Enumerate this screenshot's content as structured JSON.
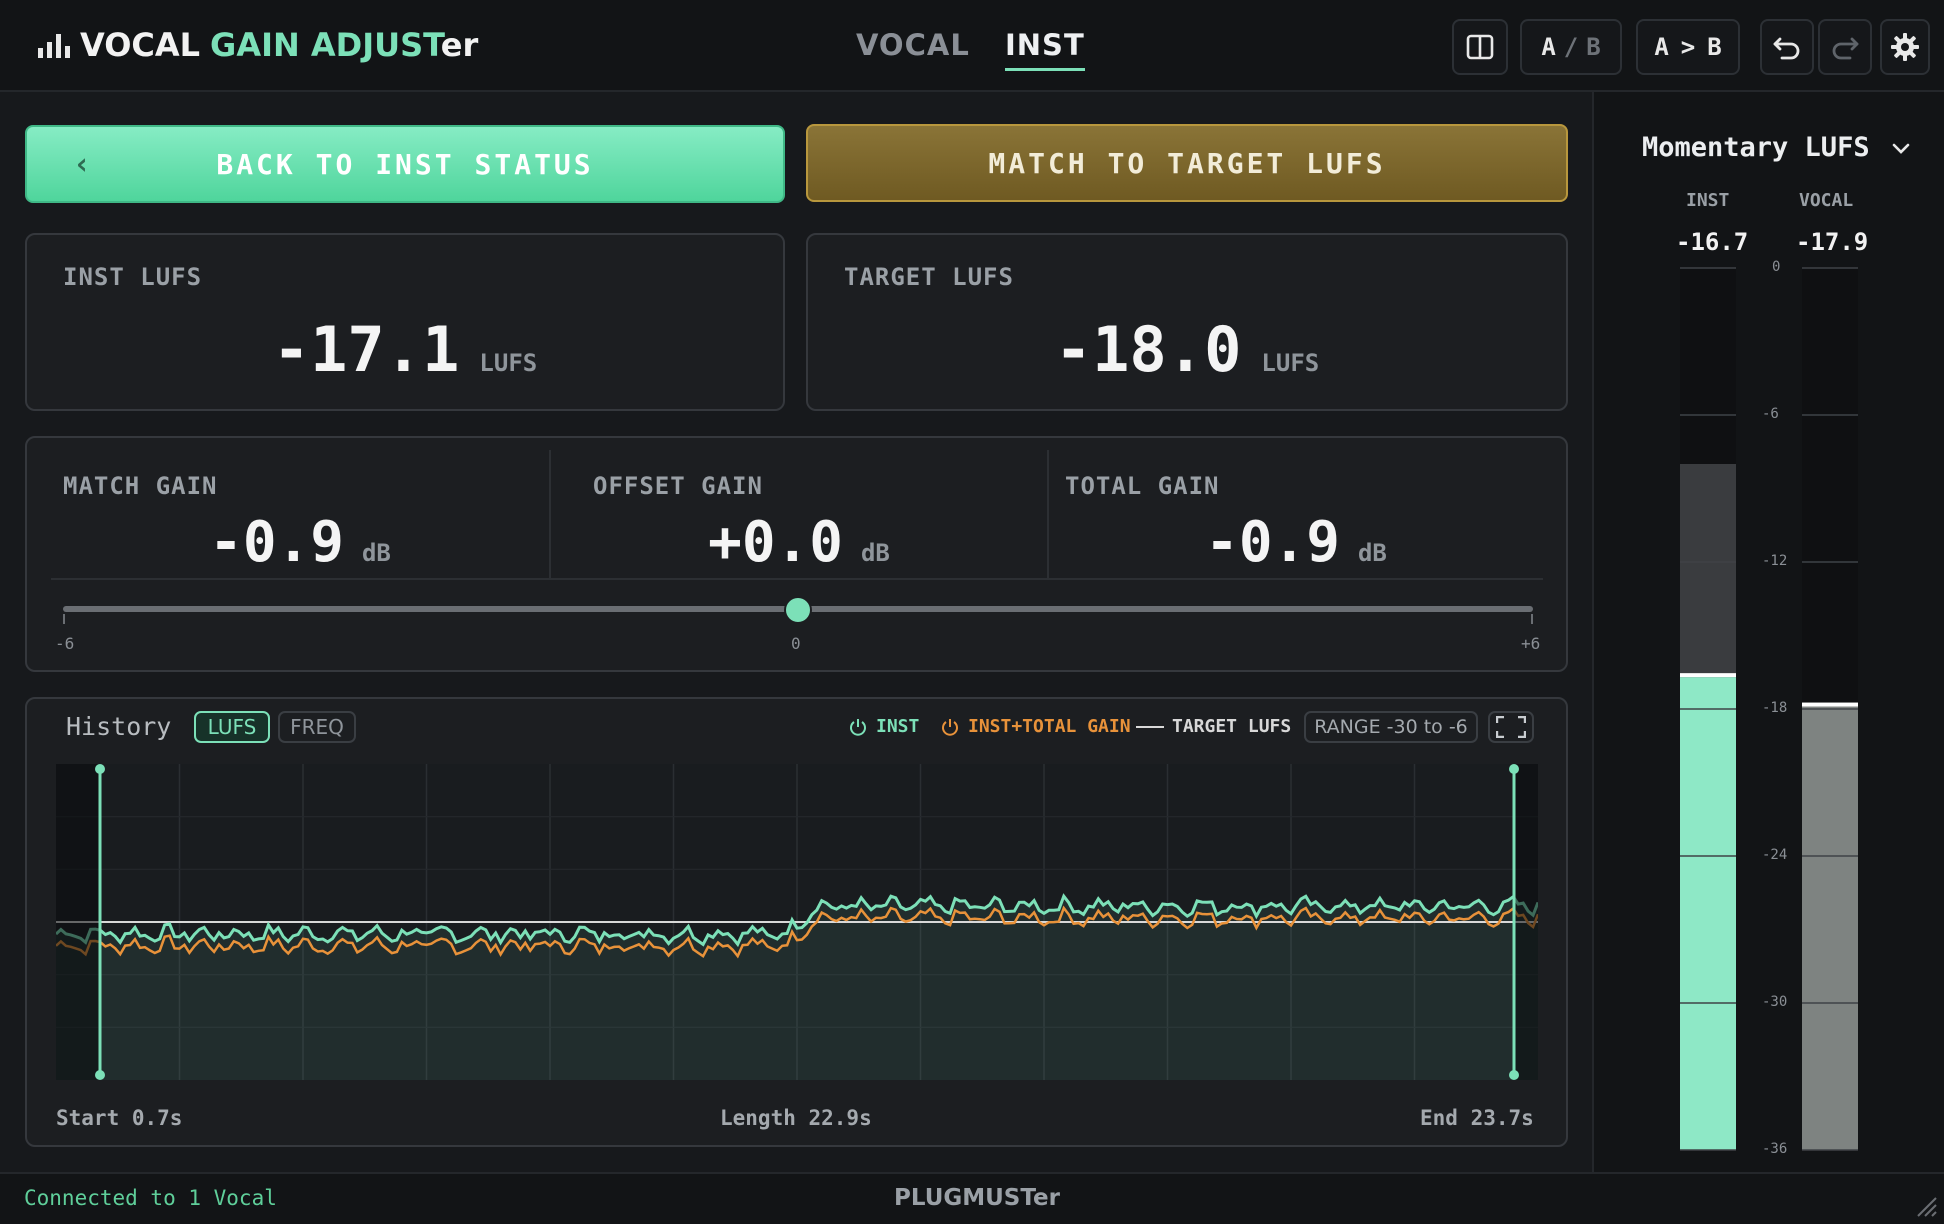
{
  "app": {
    "logo_word1": "VOCAL",
    "logo_word2": "GAIN ADJUST",
    "logo_word3": "er",
    "accent": "#7ce0b8",
    "gold": "#b8973d"
  },
  "nav": {
    "tabs": [
      {
        "label": "VOCAL",
        "active": false
      },
      {
        "label": "INST",
        "active": true
      }
    ]
  },
  "toolbar": {
    "split_view_icon": "split-view-icon",
    "ab_left": "A",
    "ab_sep": "/",
    "ab_right": "B",
    "copy_left": "A",
    "copy_sep": ">",
    "copy_right": "B",
    "undo_icon": "undo-icon",
    "redo_icon": "redo-icon",
    "settings_icon": "gear-icon"
  },
  "actions": {
    "back_chevron": "‹",
    "back_label": "BACK TO INST STATUS",
    "match_label": "MATCH TO TARGET LUFS"
  },
  "inst_lufs": {
    "label": "INST LUFS",
    "value": "-17.1",
    "unit": "LUFS"
  },
  "target_lufs": {
    "label": "TARGET LUFS",
    "value": "-18.0",
    "unit": "LUFS"
  },
  "gains": {
    "match": {
      "label": "MATCH GAIN",
      "value": "-0.9",
      "unit": "dB"
    },
    "offset": {
      "label": "OFFSET GAIN",
      "value": "+0.0",
      "unit": "dB"
    },
    "total": {
      "label": "TOTAL GAIN",
      "value": "-0.9",
      "unit": "dB"
    },
    "slider": {
      "min_label": "-6",
      "mid_label": "0",
      "max_label": "+6",
      "value": 0,
      "min": -6,
      "max": 6
    }
  },
  "history": {
    "title": "History",
    "mode_lufs": "LUFS",
    "mode_freq": "FREQ",
    "legend_inst": "INST",
    "legend_inst_total": "INST+TOTAL GAIN",
    "legend_target": "TARGET LUFS",
    "range_label": "RANGE -30 to -6",
    "range": [
      -30,
      -6
    ],
    "target_value": -18,
    "start_label": "Start 0.7s",
    "length_label": "Length 22.9s",
    "end_label": "End 23.7s",
    "inst_color": "#7ce0b8",
    "inst_total_color": "#e8923a",
    "target_color": "#d8d8d8"
  },
  "meter": {
    "mode_label": "Momentary LUFS",
    "inst_label": "INST",
    "vocal_label": "VOCAL",
    "inst_value": "-16.7",
    "vocal_value": "-17.9",
    "inst_level": -16.7,
    "vocal_level": -17.9,
    "scale_ticks": [
      "0",
      "-6",
      "-12",
      "-18",
      "-24",
      "-30",
      "-36"
    ],
    "scale_min": -36,
    "scale_max": 0
  },
  "footer": {
    "status": "Connected to 1 Vocal",
    "brand": "PLUGMUSTer"
  }
}
